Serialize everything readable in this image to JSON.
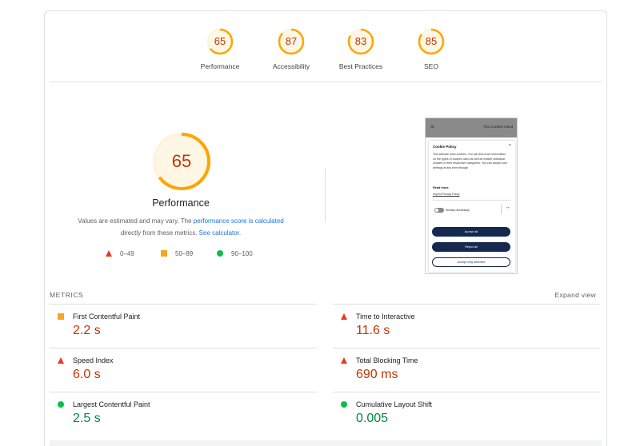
{
  "gauges": [
    {
      "score": "65",
      "label": "Performance",
      "fraction": 0.65,
      "color": "#ffa400"
    },
    {
      "score": "87",
      "label": "Accessibility",
      "fraction": 0.87,
      "color": "#ffa400"
    },
    {
      "score": "83",
      "label": "Best Practices",
      "fraction": 0.83,
      "color": "#ffa400"
    },
    {
      "score": "85",
      "label": "SEO",
      "fraction": 0.85,
      "color": "#ffa400"
    }
  ],
  "performance": {
    "score": "65",
    "fraction": 0.65,
    "title": "Performance",
    "desc_prefix": "Values are estimated and may vary. The ",
    "desc_link": "performance score is calculated",
    "desc_middle": "directly from these metrics. ",
    "desc_calc": "See calculator."
  },
  "legend": {
    "fail": "0–49",
    "average": "50–89",
    "pass": "90–100"
  },
  "screenshot": {
    "menu_icon": "≡",
    "brand": "The Content Hand",
    "modal_title": "Cookie Policy",
    "close_icon": "×",
    "modal_text": "This website uses cookies. You can find more information on the types of cookies used as well as enable individual cookies in their respective categories. You can accept your settings at any time through",
    "read_more": "Read more",
    "links": "Imprint   Privacy Policy",
    "toggle_label": "Strictly necessary",
    "arrow": "→",
    "accept_all": "Accept all",
    "reject_all": "Reject all",
    "accept_selected": "Accept only selected"
  },
  "metrics": {
    "heading": "METRICS",
    "expand": "Expand view",
    "items": [
      {
        "name": "First Contentful Paint",
        "value": "2.2 s",
        "status": "average"
      },
      {
        "name": "Time to Interactive",
        "value": "11.6 s",
        "status": "fail"
      },
      {
        "name": "Speed Index",
        "value": "6.0 s",
        "status": "fail"
      },
      {
        "name": "Total Blocking Time",
        "value": "690 ms",
        "status": "fail"
      },
      {
        "name": "Largest Contentful Paint",
        "value": "2.5 s",
        "status": "pass"
      },
      {
        "name": "Cumulative Layout Shift",
        "value": "0.005",
        "status": "pass"
      }
    ]
  },
  "colors": {
    "fail": "#e5392a",
    "average": "#ffa400",
    "pass": "#0cbd4c",
    "score_text": "#c33300",
    "link": "#1a73e8"
  }
}
